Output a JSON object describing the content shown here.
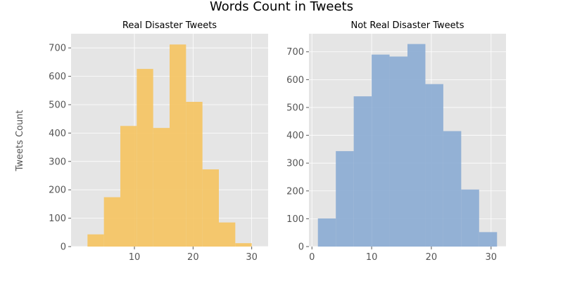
{
  "figure": {
    "title": "Words Count in Tweets",
    "ylabel": "Tweets Count"
  },
  "chart_data": [
    {
      "type": "bar",
      "title": "Real Disaster Tweets",
      "xlabel": "",
      "ylabel": "Tweets Count",
      "bin_edges": [
        2.0,
        4.8,
        7.6,
        10.4,
        13.2,
        16.0,
        18.8,
        21.6,
        24.4,
        27.2,
        30.0
      ],
      "values": [
        43,
        174,
        425,
        626,
        418,
        712,
        510,
        272,
        85,
        12
      ],
      "color": "#f5c35f",
      "xlim": [
        -0.8,
        32.8
      ],
      "ylim": [
        0,
        750
      ],
      "xticks": [
        10,
        20,
        30
      ],
      "yticks": [
        0,
        100,
        200,
        300,
        400,
        500,
        600,
        700
      ],
      "grid": true
    },
    {
      "type": "bar",
      "title": "Not Real Disaster Tweets",
      "xlabel": "",
      "ylabel": "",
      "bin_edges": [
        1.0,
        4.0,
        7.0,
        10.0,
        13.0,
        16.0,
        19.0,
        22.0,
        25.0,
        28.0,
        31.0
      ],
      "values": [
        101,
        343,
        540,
        690,
        683,
        728,
        584,
        415,
        205,
        52
      ],
      "color": "#8aabd3",
      "xlim": [
        -0.5,
        32.5
      ],
      "ylim": [
        0,
        765
      ],
      "xticks": [
        0,
        10,
        20,
        30
      ],
      "yticks": [
        0,
        100,
        200,
        300,
        400,
        500,
        600,
        700
      ],
      "grid": true
    }
  ]
}
